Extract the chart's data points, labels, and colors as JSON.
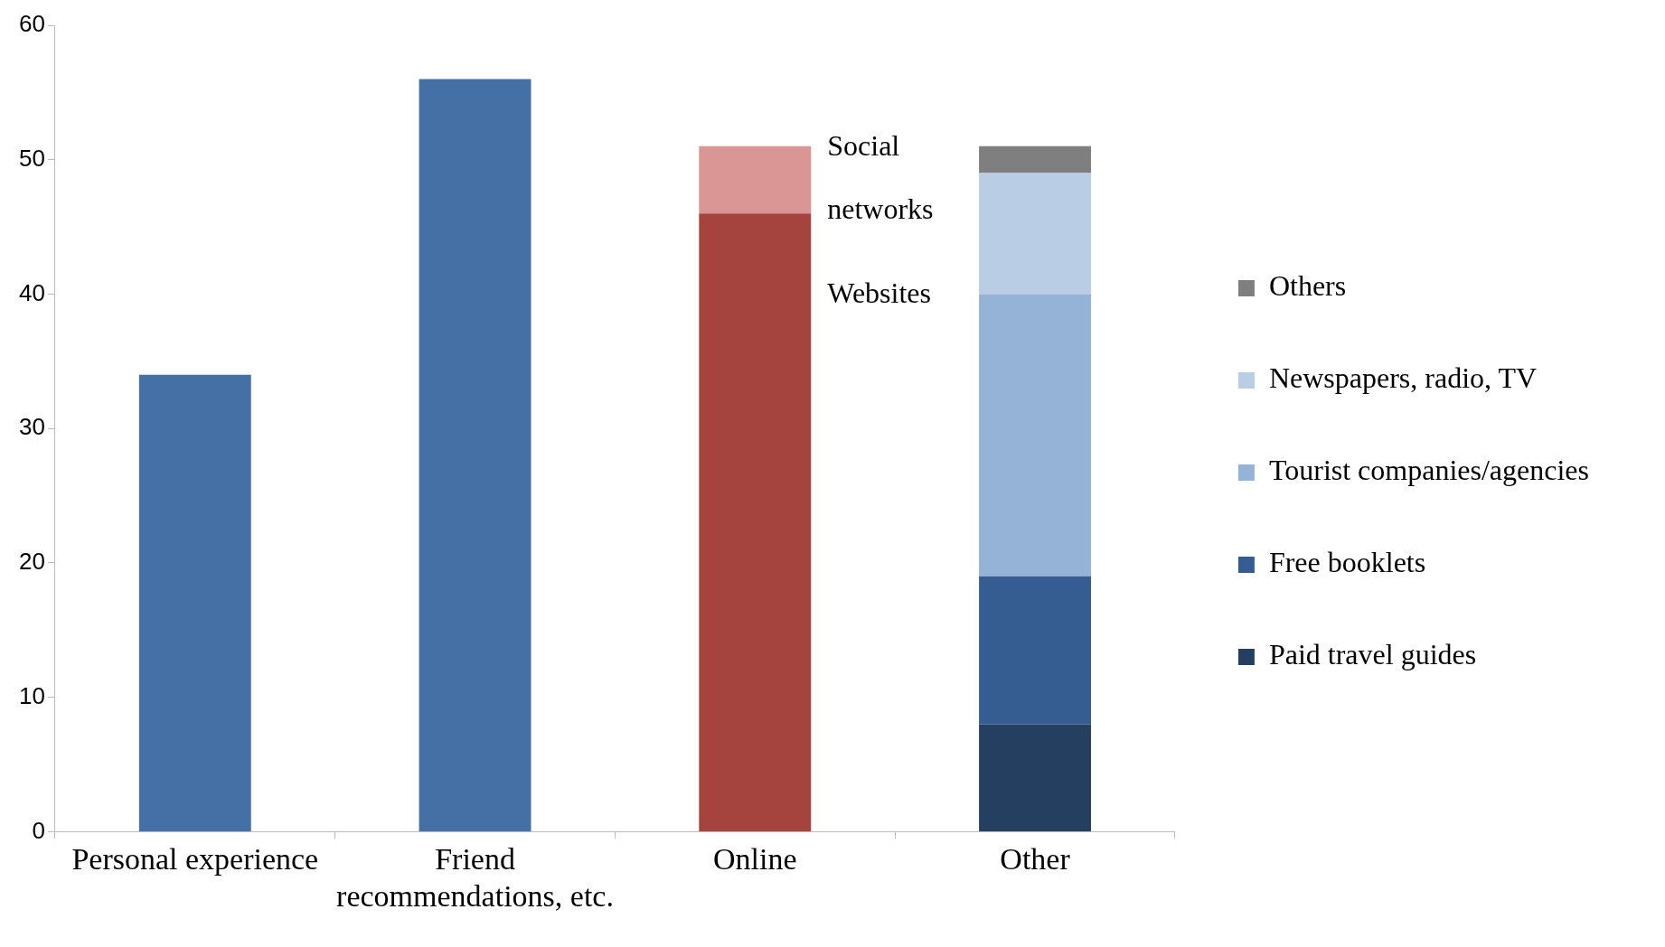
{
  "chart_data": {
    "type": "bar",
    "stacked": true,
    "categories": [
      "Personal experience",
      "Friend recommendations, etc.",
      "Online",
      "Other"
    ],
    "series": [
      {
        "color": "#4470a5",
        "values": [
          34,
          56,
          null,
          null
        ]
      },
      {
        "name": "Websites",
        "color": "#a5443f",
        "values": [
          null,
          null,
          46,
          null
        ]
      },
      {
        "name": "Social networks",
        "color": "#d99694",
        "values": [
          null,
          null,
          5,
          null
        ]
      },
      {
        "name": "Paid travel guides",
        "color": "#243f60",
        "values": [
          null,
          null,
          null,
          8
        ]
      },
      {
        "name": "Free booklets",
        "color": "#355d91",
        "values": [
          null,
          null,
          null,
          11
        ]
      },
      {
        "name": "Tourist companies/agencies",
        "color": "#95b3d7",
        "values": [
          null,
          null,
          null,
          21
        ]
      },
      {
        "name": "Newspapers, radio, TV",
        "color": "#b9cde4",
        "values": [
          null,
          null,
          null,
          9
        ]
      },
      {
        "name": "Others",
        "color": "#7f7f7f",
        "values": [
          null,
          null,
          null,
          2
        ]
      }
    ],
    "ylim": [
      0,
      60
    ],
    "yticks": [
      0,
      10,
      20,
      30,
      40,
      50,
      60
    ],
    "grid": false,
    "legend": "right"
  }
}
